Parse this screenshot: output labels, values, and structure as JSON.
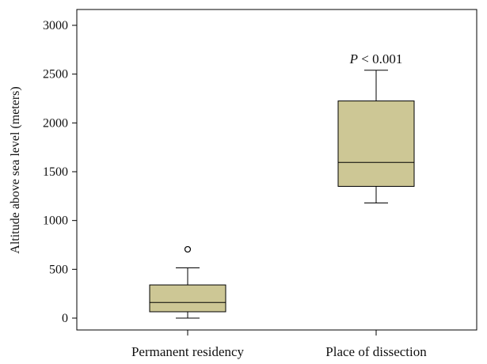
{
  "chart_data": {
    "type": "boxplot",
    "title": "",
    "xlabel": "",
    "ylabel": "Altitude above sea level (meters)",
    "ylim": [
      0,
      3000
    ],
    "yticks": [
      0,
      500,
      1000,
      1500,
      2000,
      2500,
      3000
    ],
    "grid": false,
    "categories": [
      "Permanent residency",
      "Place of dissection"
    ],
    "boxes": [
      {
        "category": "Permanent residency",
        "whisker_low": 0,
        "q1": 65,
        "median": 160,
        "q3": 340,
        "whisker_high": 515,
        "outliers": [
          705
        ]
      },
      {
        "category": "Place of dissection",
        "whisker_low": 1180,
        "q1": 1350,
        "median": 1595,
        "q3": 2225,
        "whisker_high": 2540,
        "outliers": []
      }
    ],
    "annotation": {
      "italic_part": "P",
      "rest": " < 0.001",
      "category": "Place of dissection",
      "y": 2660
    },
    "colors": {
      "box_fill": "#cdc795",
      "stroke": "#000000"
    }
  }
}
